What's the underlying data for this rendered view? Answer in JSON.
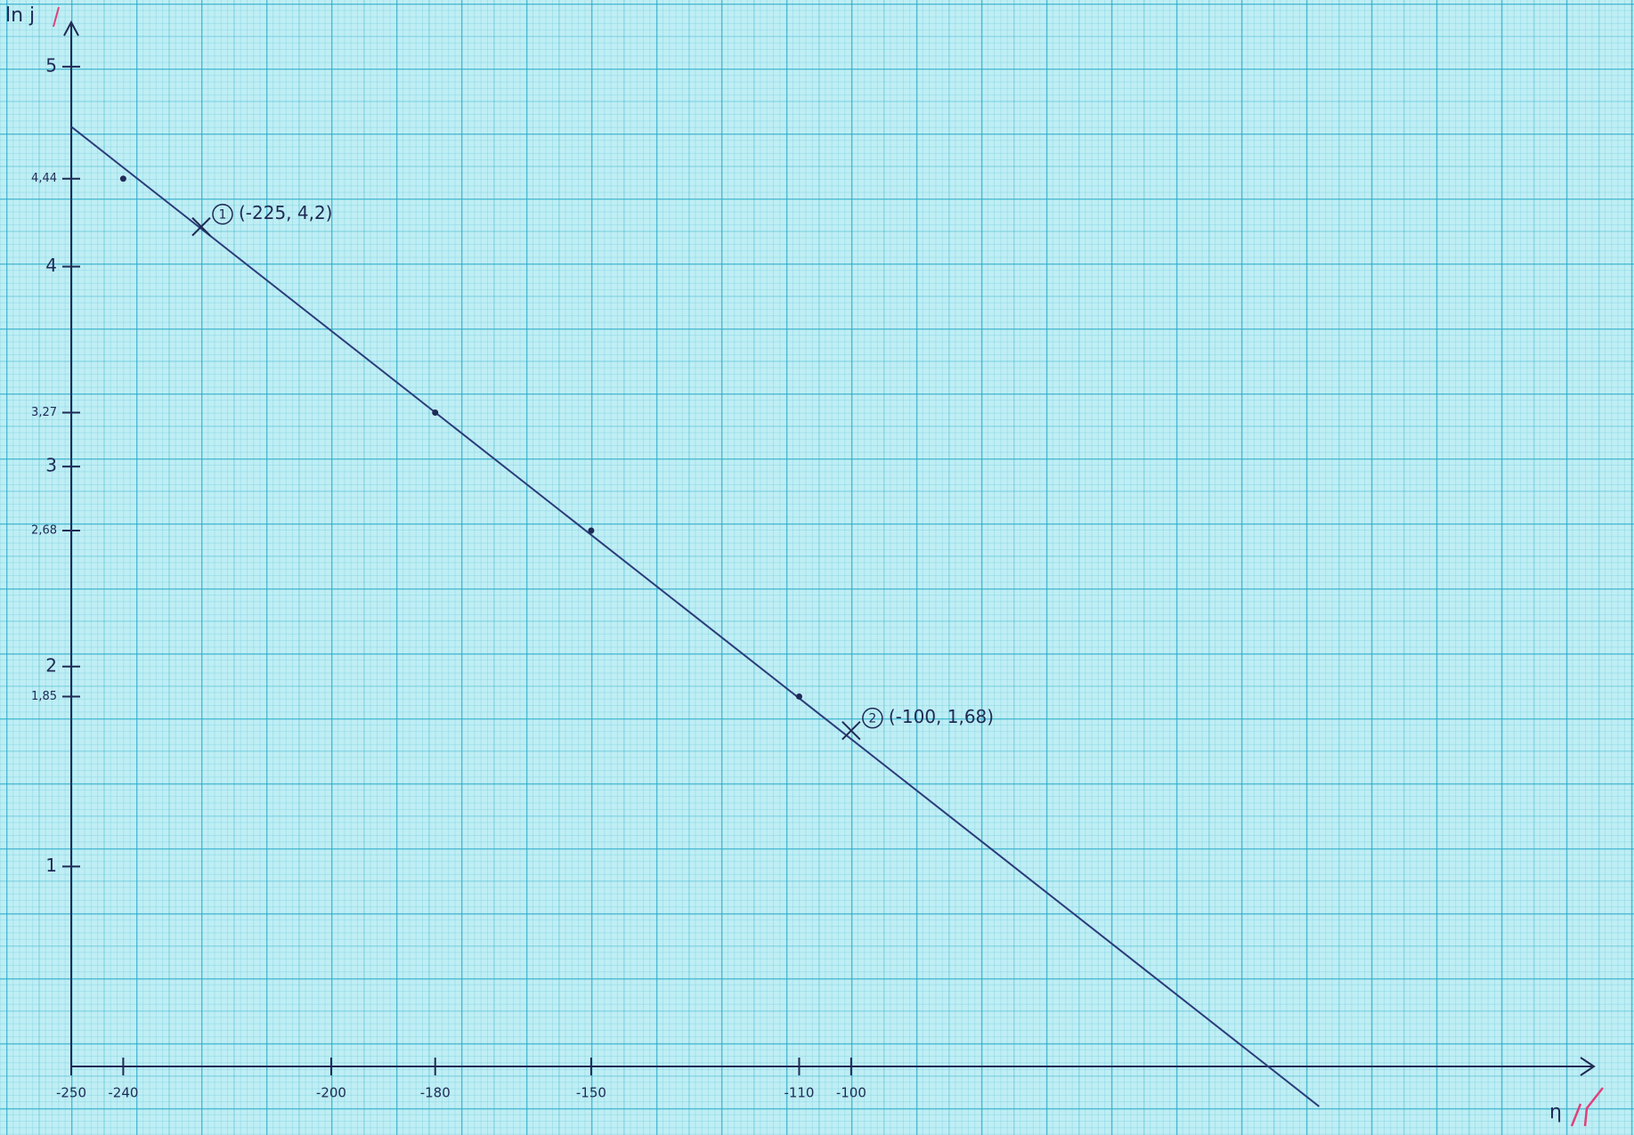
{
  "chart_data": {
    "type": "scatter",
    "x_label": "η",
    "y_label": "ln j",
    "x": [
      -240,
      -180,
      -150,
      -110
    ],
    "values": [
      4.44,
      3.27,
      2.68,
      1.85
    ],
    "color": "#1f2a55",
    "xlim": [
      -250,
      42
    ],
    "ylim": [
      0,
      5.2
    ],
    "xticks": [
      -250,
      -240,
      -200,
      -180,
      -150,
      -110,
      -100
    ],
    "yticks": [
      1,
      {
        "value": 1.85,
        "label": "1,85"
      },
      2,
      {
        "value": 2.68,
        "label": "2,68"
      },
      3,
      {
        "value": 3.27,
        "label": "3,27"
      },
      4,
      {
        "value": 4.44,
        "label": "4,44"
      },
      5
    ],
    "fit_line": {
      "x": [
        -250,
        -10
      ],
      "values": [
        4.7,
        -0.2
      ]
    },
    "annotations": [
      {
        "marker": "1",
        "label": "(-225, 4,2)",
        "x": -225,
        "y": 4.2
      },
      {
        "marker": "2",
        "label": "(-100, 1,68)",
        "x": -100,
        "y": 1.68
      }
    ]
  }
}
